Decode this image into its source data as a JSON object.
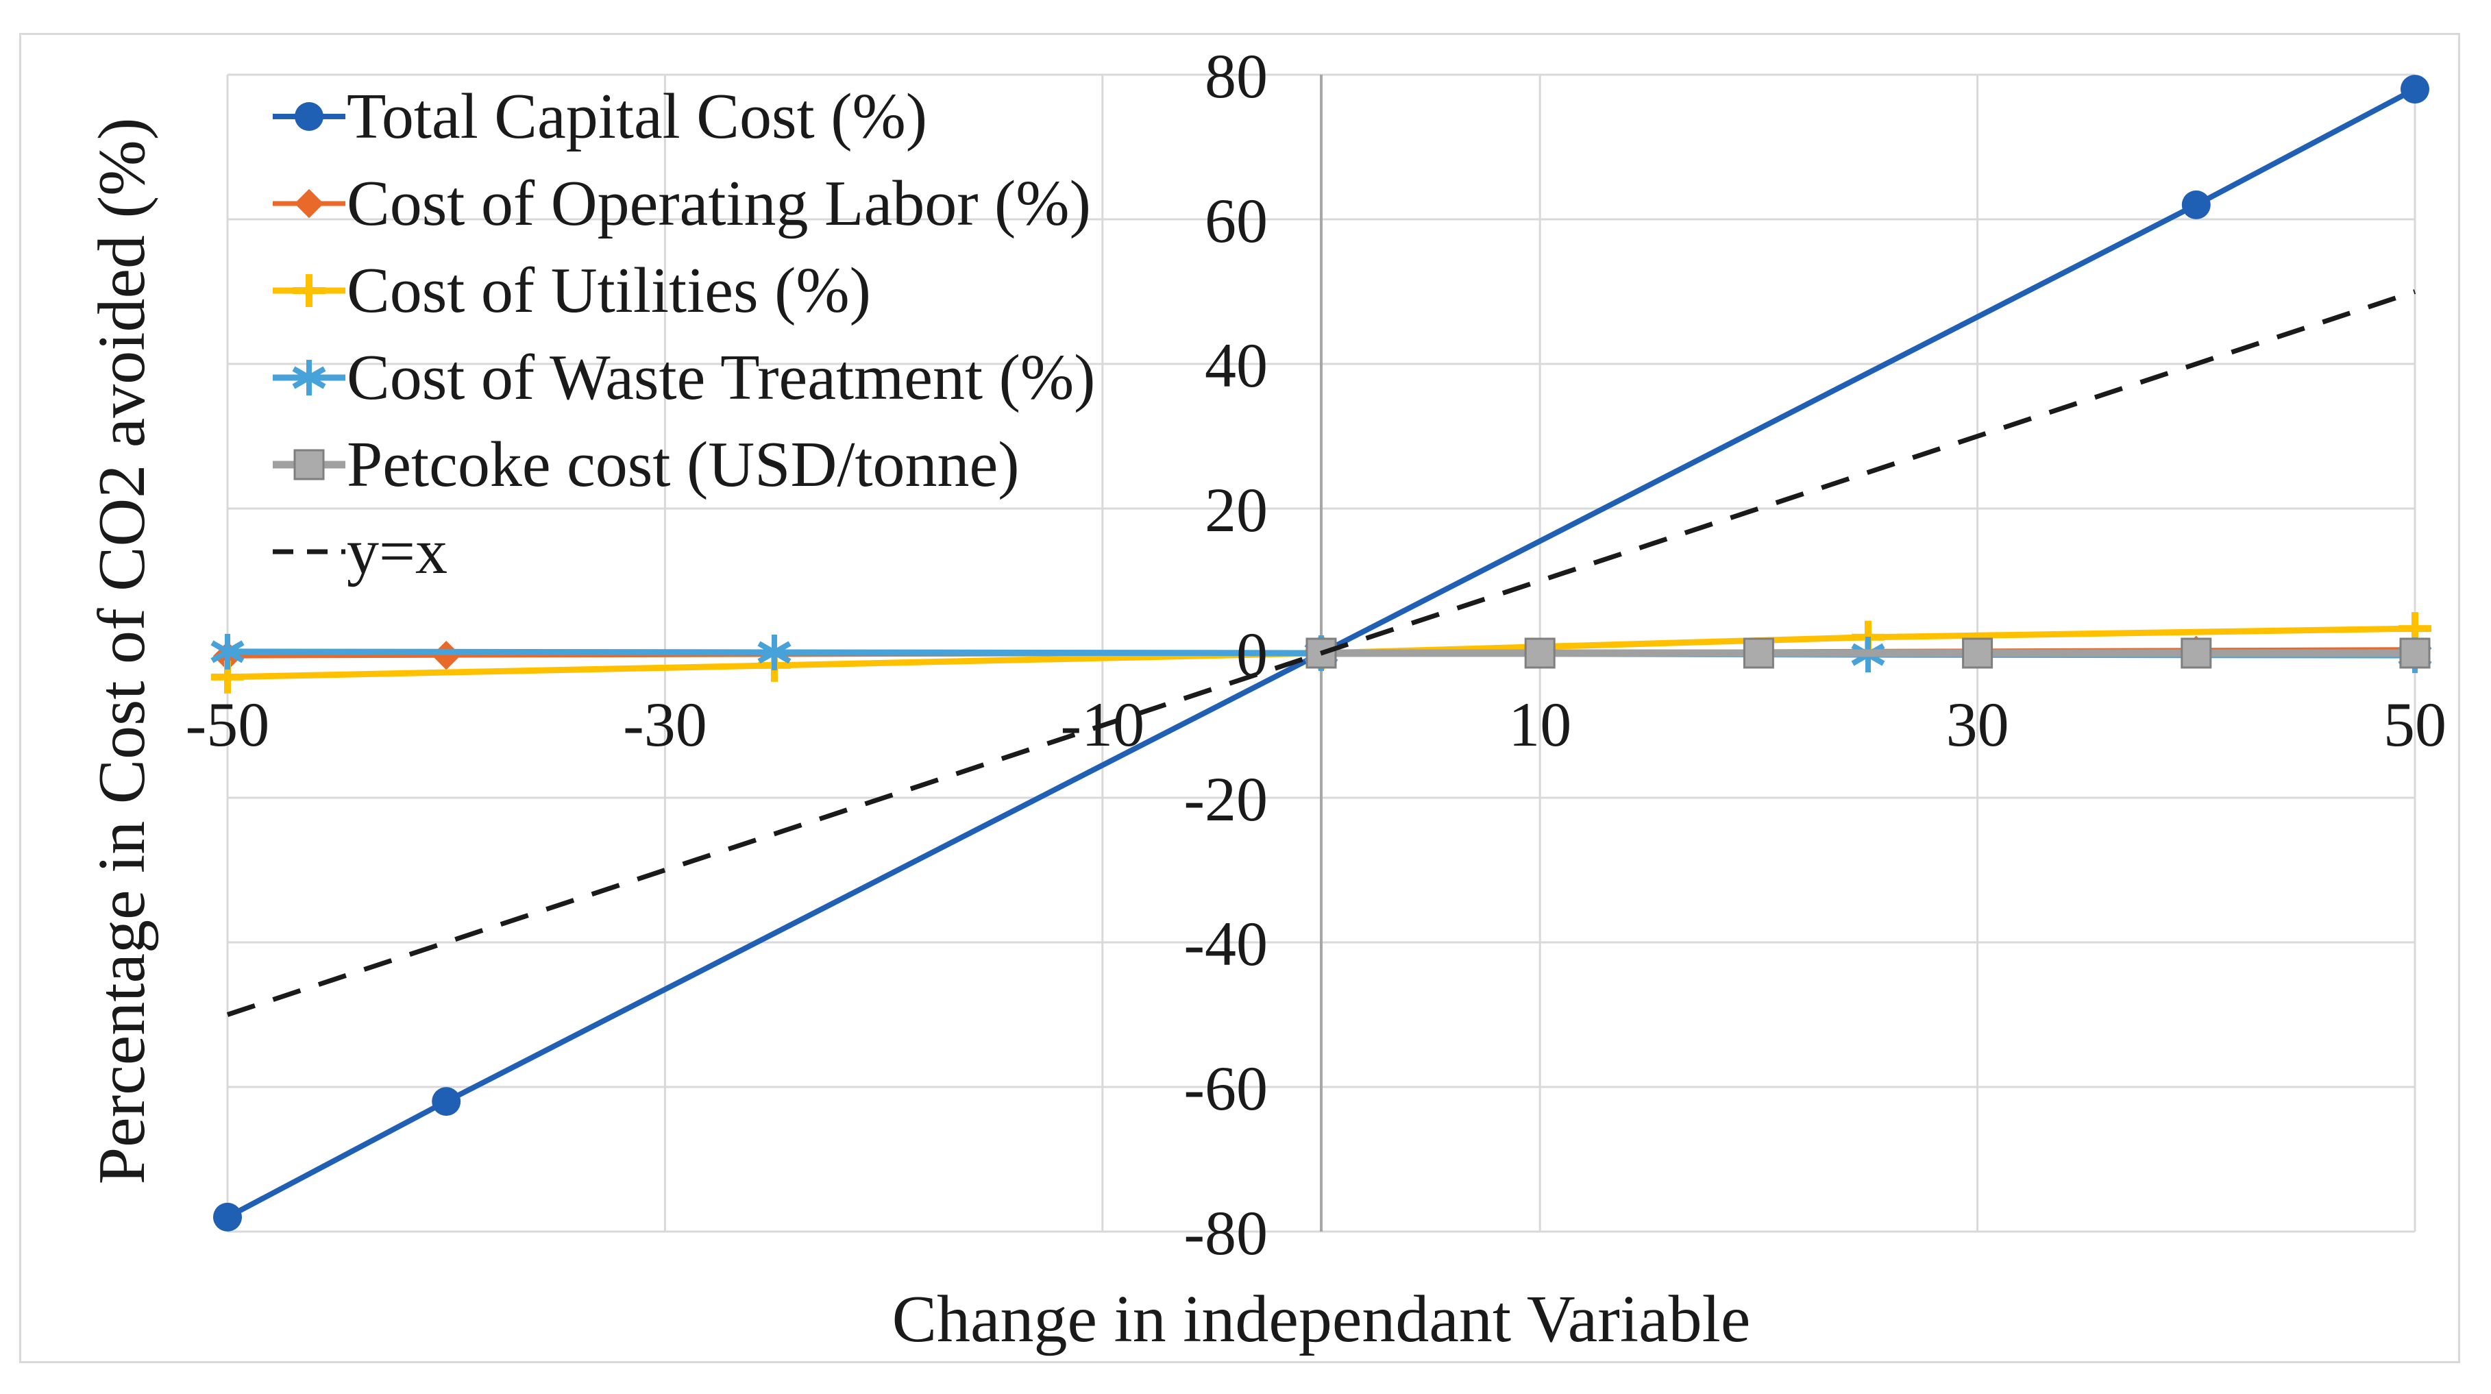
{
  "page": {
    "background": "#ffffff",
    "frame_color": "#d9d9d9"
  },
  "chart_data": {
    "type": "line",
    "title": "",
    "xlabel": "Change in independant Variable",
    "ylabel": "Percentage in Cost of CO2 avoided (%)",
    "xlim": [
      -50,
      50
    ],
    "ylim": [
      -80,
      80
    ],
    "x_ticks": [
      -50,
      -30,
      -10,
      10,
      30,
      50
    ],
    "y_ticks": [
      80,
      60,
      40,
      20,
      0,
      -20,
      -40,
      -60,
      -80
    ],
    "grid": {
      "show": true,
      "color": "#d9d9d9",
      "zero_axis_color": "#a6a6a6"
    },
    "legend_position": "inside-top-left",
    "text_color": "#1a1a1a",
    "series": [
      {
        "name": "Total Capital Cost (%)",
        "color": "#2060b4",
        "marker": "circle",
        "line": "solid",
        "lw": 8,
        "x": [
          -50,
          -40,
          0,
          40,
          50
        ],
        "y": [
          -78,
          -62,
          0,
          62,
          78
        ]
      },
      {
        "name": "Cost of Operating Labor (%)",
        "color": "#e8692a",
        "marker": "diamond",
        "line": "solid",
        "lw": 7,
        "x": [
          -50,
          -40,
          0,
          40,
          50
        ],
        "y": [
          -0.4,
          -0.3,
          0,
          0.4,
          0.5
        ]
      },
      {
        "name": "Cost of Utilities (%)",
        "color": "#ffc000",
        "marker": "plus",
        "line": "solid",
        "lw": 9,
        "x": [
          -50,
          -25,
          0,
          25,
          50
        ],
        "y": [
          -3.3,
          -1.7,
          0,
          2.2,
          3.4
        ]
      },
      {
        "name": "Cost of Waste Treatment (%)",
        "color": "#46a2d9",
        "marker": "asterisk",
        "line": "solid",
        "lw": 9,
        "x": [
          -50,
          -25,
          0,
          25,
          50
        ],
        "y": [
          0.2,
          0.1,
          0,
          -0.2,
          -0.3
        ]
      },
      {
        "name": "Petcoke cost (USD/tonne)",
        "color": "#a0a0a0",
        "marker": "square",
        "line": "solid",
        "lw": 11,
        "marker_fill": "#ababab",
        "marker_edge": "#7f7f7f",
        "x": [
          0,
          10,
          20,
          30,
          40,
          50
        ],
        "y": [
          0,
          0,
          0,
          0,
          0,
          0
        ]
      },
      {
        "name": "y=x",
        "color": "#1a1a1a",
        "marker": "none",
        "line": "dashed",
        "lw": 7,
        "x": [
          -50,
          50
        ],
        "y": [
          -50,
          50
        ]
      }
    ]
  }
}
